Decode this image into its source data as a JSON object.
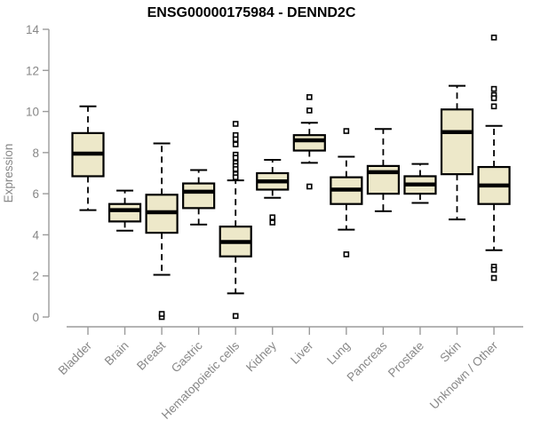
{
  "chart_data": {
    "type": "boxplot",
    "title": "ENSG00000175984 - DENND2C",
    "ylabel": "Expression",
    "xlabel": "",
    "ylim": [
      0,
      14
    ],
    "yticks": [
      0,
      2,
      4,
      6,
      8,
      10,
      12,
      14
    ],
    "grid": false,
    "legend": "none",
    "categories": [
      "Bladder",
      "Brain",
      "Breast",
      "Gastric",
      "Hematopoietic cells",
      "Kidney",
      "Liver",
      "Lung",
      "Pancreas",
      "Prostate",
      "Skin",
      "Unknown / Other"
    ],
    "series": [
      {
        "category": "Bladder",
        "whisker_low": 5.2,
        "q1": 6.85,
        "median": 7.95,
        "q3": 8.95,
        "whisker_high": 10.25,
        "outliers": []
      },
      {
        "category": "Brain",
        "whisker_low": 4.2,
        "q1": 4.65,
        "median": 5.2,
        "q3": 5.5,
        "whisker_high": 6.15,
        "outliers": []
      },
      {
        "category": "Breast",
        "whisker_low": 2.05,
        "q1": 4.1,
        "median": 5.1,
        "q3": 5.95,
        "whisker_high": 8.45,
        "outliers": [
          0,
          0.15
        ]
      },
      {
        "category": "Gastric",
        "whisker_low": 4.5,
        "q1": 5.3,
        "median": 6.1,
        "q3": 6.5,
        "whisker_high": 7.15,
        "outliers": []
      },
      {
        "category": "Hematopoietic cells",
        "whisker_low": 1.15,
        "q1": 2.95,
        "median": 3.65,
        "q3": 4.4,
        "whisker_high": 6.65,
        "outliers": [
          9.4,
          8.85,
          8.65,
          8.4,
          7.9,
          7.75,
          7.5,
          7.35,
          7.2,
          6.95,
          6.8,
          0.05
        ]
      },
      {
        "category": "Kidney",
        "whisker_low": 5.8,
        "q1": 6.2,
        "median": 6.6,
        "q3": 7.0,
        "whisker_high": 7.65,
        "outliers": [
          4.85,
          4.6
        ]
      },
      {
        "category": "Liver",
        "whisker_low": 7.5,
        "q1": 8.1,
        "median": 8.6,
        "q3": 8.85,
        "whisker_high": 9.45,
        "outliers": [
          10.7,
          10.05,
          6.35
        ]
      },
      {
        "category": "Lung",
        "whisker_low": 4.25,
        "q1": 5.5,
        "median": 6.2,
        "q3": 6.8,
        "whisker_high": 7.8,
        "outliers": [
          9.05,
          3.05
        ]
      },
      {
        "category": "Pancreas",
        "whisker_low": 5.15,
        "q1": 6.0,
        "median": 7.05,
        "q3": 7.35,
        "whisker_high": 9.15,
        "outliers": []
      },
      {
        "category": "Prostate",
        "whisker_low": 5.55,
        "q1": 6.0,
        "median": 6.45,
        "q3": 6.85,
        "whisker_high": 7.45,
        "outliers": []
      },
      {
        "category": "Skin",
        "whisker_low": 4.75,
        "q1": 6.95,
        "median": 9.0,
        "q3": 10.1,
        "whisker_high": 11.25,
        "outliers": []
      },
      {
        "category": "Unknown / Other",
        "whisker_low": 3.25,
        "q1": 5.5,
        "median": 6.4,
        "q3": 7.3,
        "whisker_high": 9.3,
        "outliers": [
          13.6,
          11.1,
          10.8,
          10.65,
          10.25,
          2.45,
          2.3,
          1.9
        ]
      }
    ],
    "style": {
      "box_fill": "#EDE8C9",
      "box_stroke": "#000000",
      "axis_color": "#9B9B9B",
      "label_color": "#878787",
      "title_color": "#000000"
    }
  }
}
